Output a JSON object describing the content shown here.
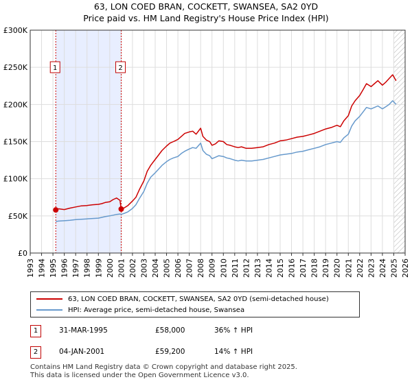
{
  "title_line1": "63, LON COED BRAN, COCKETT, SWANSEA, SA2 0YD",
  "title_line2": "Price paid vs. HM Land Registry's House Price Index (HPI)",
  "chart_data": {
    "type": "line",
    "ylim": [
      0,
      300000
    ],
    "xlim": [
      1993,
      2026
    ],
    "ytick_values": [
      0,
      50000,
      100000,
      150000,
      200000,
      250000,
      300000
    ],
    "ytick_labels": [
      "£0",
      "£50K",
      "£100K",
      "£150K",
      "£200K",
      "£250K",
      "£300K"
    ],
    "xtick_labels": [
      "1993",
      "1994",
      "1995",
      "1996",
      "1997",
      "1998",
      "1999",
      "2000",
      "2001",
      "2002",
      "2003",
      "2004",
      "2005",
      "2006",
      "2007",
      "2008",
      "2009",
      "2010",
      "2011",
      "2012",
      "2013",
      "2014",
      "2015",
      "2016",
      "2017",
      "2018",
      "2019",
      "2020",
      "2021",
      "2022",
      "2023",
      "2024",
      "2025",
      "2026"
    ],
    "series": [
      {
        "name": "63, LON COED BRAN, COCKETT, SWANSEA, SA2 0YD (semi-detached house)",
        "color": "#cc0000",
        "x": [
          1995.25,
          1995.5,
          1996,
          1996.5,
          1997,
          1997.5,
          1998,
          1998.5,
          1999,
          1999.3,
          1999.6,
          2000,
          2000.3,
          2000.6,
          2000.9,
          2001.01,
          2001.3,
          2001.6,
          2002,
          2002.3,
          2002.6,
          2003,
          2003.3,
          2003.6,
          2004,
          2004.3,
          2004.6,
          2005,
          2005.3,
          2005.6,
          2006,
          2006.3,
          2006.6,
          2007,
          2007.3,
          2007.6,
          2008,
          2008.2,
          2008.5,
          2008.8,
          2009,
          2009.3,
          2009.6,
          2010,
          2010.3,
          2010.6,
          2011,
          2011.3,
          2011.6,
          2012,
          2012.5,
          2013,
          2013.5,
          2014,
          2014.5,
          2015,
          2015.5,
          2016,
          2016.5,
          2017,
          2017.5,
          2018,
          2018.5,
          2019,
          2019.5,
          2020,
          2020.3,
          2020.6,
          2021,
          2021.3,
          2021.6,
          2022,
          2022.3,
          2022.6,
          2023,
          2023.3,
          2023.6,
          2024,
          2024.3,
          2024.6,
          2024.9,
          2025.2
        ],
        "y": [
          58000,
          59500,
          58500,
          60500,
          62000,
          63500,
          64000,
          65000,
          65500,
          66500,
          68000,
          69000,
          72000,
          74000,
          71000,
          59200,
          61000,
          64000,
          70000,
          75000,
          85000,
          97000,
          110000,
          118000,
          126000,
          132000,
          138000,
          144000,
          148000,
          150000,
          153000,
          157000,
          161000,
          163000,
          164000,
          160000,
          168000,
          157000,
          152000,
          150000,
          145000,
          147000,
          151000,
          150000,
          146000,
          145000,
          143000,
          142000,
          143000,
          141000,
          141000,
          142000,
          143000,
          146000,
          148000,
          151000,
          152000,
          154000,
          156000,
          157000,
          159000,
          161000,
          164000,
          167000,
          169000,
          172000,
          170000,
          178000,
          185000,
          198000,
          205000,
          212000,
          220000,
          228000,
          224000,
          228000,
          232000,
          226000,
          230000,
          235000,
          240000,
          232000
        ]
      },
      {
        "name": "HPI: Average price, semi-detached house, Swansea",
        "color": "#6699cc",
        "x": [
          1995.25,
          1995.5,
          1996,
          1996.5,
          1997,
          1997.5,
          1998,
          1998.5,
          1999,
          1999.3,
          1999.6,
          2000,
          2000.3,
          2000.6,
          2000.9,
          2001.01,
          2001.3,
          2001.6,
          2002,
          2002.3,
          2002.6,
          2003,
          2003.3,
          2003.6,
          2004,
          2004.3,
          2004.6,
          2005,
          2005.3,
          2005.6,
          2006,
          2006.3,
          2006.6,
          2007,
          2007.3,
          2007.6,
          2008,
          2008.2,
          2008.5,
          2008.8,
          2009,
          2009.3,
          2009.6,
          2010,
          2010.3,
          2010.6,
          2011,
          2011.3,
          2011.6,
          2012,
          2012.5,
          2013,
          2013.5,
          2014,
          2014.5,
          2015,
          2015.5,
          2016,
          2016.5,
          2017,
          2017.5,
          2018,
          2018.5,
          2019,
          2019.5,
          2020,
          2020.3,
          2020.6,
          2021,
          2021.3,
          2021.6,
          2022,
          2022.3,
          2022.6,
          2023,
          2023.3,
          2023.6,
          2024,
          2024.3,
          2024.6,
          2024.9,
          2025.2
        ],
        "y": [
          42500,
          43000,
          43500,
          44000,
          45000,
          45500,
          46000,
          46500,
          47000,
          48000,
          49000,
          50000,
          51000,
          52000,
          52500,
          52000,
          53500,
          55500,
          60000,
          65000,
          73000,
          83000,
          94000,
          102000,
          108000,
          113000,
          118000,
          123000,
          126000,
          128000,
          130000,
          134000,
          137000,
          140000,
          142000,
          141000,
          148000,
          138000,
          133000,
          131000,
          127000,
          129000,
          131000,
          130000,
          128000,
          127000,
          125000,
          124000,
          125000,
          124000,
          124000,
          125000,
          126000,
          128000,
          130000,
          132000,
          133000,
          134000,
          136000,
          137000,
          139000,
          141000,
          143000,
          146000,
          148000,
          150000,
          149000,
          155000,
          160000,
          171000,
          178000,
          184000,
          190000,
          196000,
          194000,
          196000,
          198000,
          194000,
          197000,
          200000,
          205000,
          200000
        ]
      }
    ],
    "markers": [
      {
        "label": "1",
        "x": 1995.25,
        "y": 58000
      },
      {
        "label": "2",
        "x": 2001.01,
        "y": 59200
      }
    ],
    "shaded_range": [
      1995.25,
      2001.01
    ],
    "hatched_range_start": 2025.0
  },
  "legend": {
    "items": [
      {
        "label": "63, LON COED BRAN, COCKETT, SWANSEA, SA2 0YD (semi-detached house)",
        "color": "#cc0000"
      },
      {
        "label": "HPI: Average price, semi-detached house, Swansea",
        "color": "#6699cc"
      }
    ]
  },
  "transactions": [
    {
      "badge": "1",
      "date": "31-MAR-1995",
      "price": "£58,000",
      "hpi": "36% ↑ HPI"
    },
    {
      "badge": "2",
      "date": "04-JAN-2001",
      "price": "£59,200",
      "hpi": "14% ↑ HPI"
    }
  ],
  "footer": {
    "line1": "Contains HM Land Registry data © Crown copyright and database right 2025.",
    "line2": "This data is licensed under the Open Government Licence v3.0."
  }
}
